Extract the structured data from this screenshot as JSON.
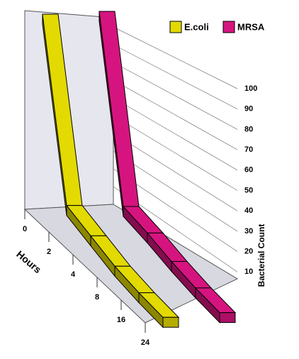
{
  "chart_data": {
    "type": "line3d",
    "x_label": "Hours",
    "y_label": "Bacterial Count",
    "categories": [
      "0",
      "2",
      "4",
      "8",
      "16",
      "24"
    ],
    "series": [
      {
        "name": "E.coli",
        "color": "#e2da00",
        "values": [
          100,
          12,
          8,
          4,
          2,
          1
        ]
      },
      {
        "name": "MRSA",
        "color": "#d6147f",
        "values": [
          100,
          10,
          8,
          5,
          3,
          2
        ]
      }
    ],
    "ylim": [
      0,
      100
    ],
    "yticks": [
      10,
      20,
      30,
      40,
      50,
      60,
      70,
      80,
      90,
      100
    ],
    "grid": true
  }
}
